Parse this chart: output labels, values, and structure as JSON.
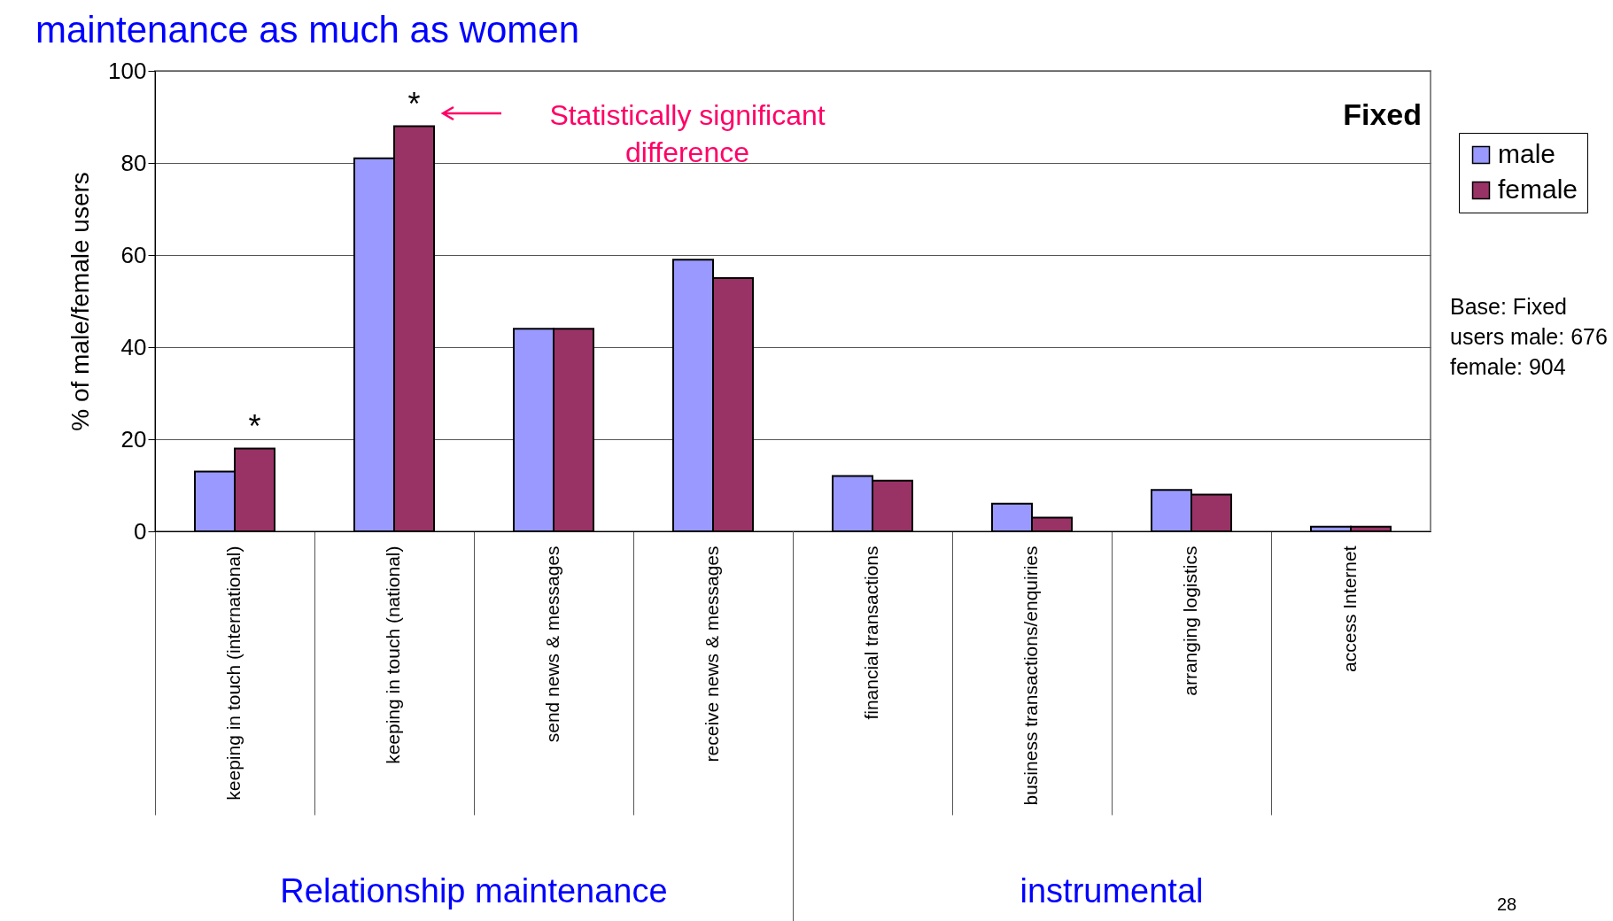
{
  "chart_data": {
    "type": "bar",
    "title": "maintenance as much as women",
    "ylabel": "% of male/female users",
    "categories": [
      "keeping in touch (international)",
      "keeping in touch (national)",
      "send news & messages",
      "receive news & messages",
      "financial transactions",
      "business transactions/enquiries",
      "arranging logistics",
      "access Internet"
    ],
    "series": [
      {
        "name": "male",
        "color": "#9999ff",
        "values": [
          13,
          81,
          44,
          59,
          12,
          6,
          9,
          1
        ]
      },
      {
        "name": "female",
        "color": "#993366",
        "values": [
          18,
          88,
          44,
          55,
          11,
          3,
          8,
          1
        ]
      }
    ],
    "ylim": [
      0,
      100
    ],
    "yticks": [
      0,
      20,
      40,
      60,
      80,
      100
    ],
    "grid": "y",
    "legend": "right",
    "annotations": [
      {
        "text": "*",
        "x": "keeping in touch (international)",
        "y": 18
      },
      {
        "text": "*",
        "x": "keeping in touch (national)",
        "y": 88
      },
      "Statistically significant difference",
      "Fixed",
      "Base: Fixed users male: 676 female: 904",
      "Relationship maintenance",
      "instrumental",
      "28"
    ]
  }
}
